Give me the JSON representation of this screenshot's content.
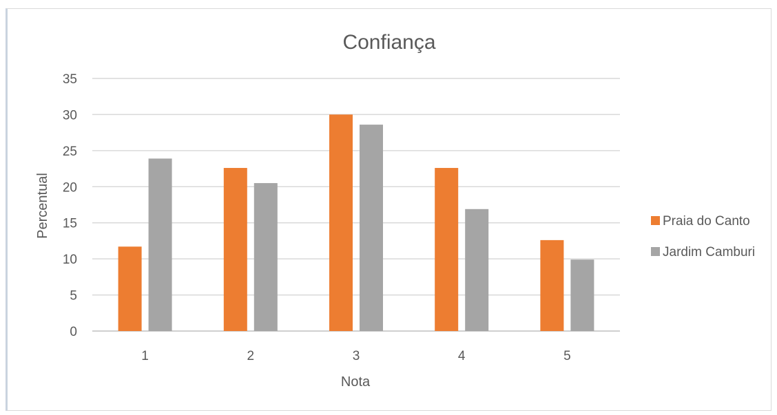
{
  "chart_data": {
    "type": "bar",
    "title": "Confiança",
    "xlabel": "Nota",
    "ylabel": "Percentual",
    "categories": [
      "1",
      "2",
      "3",
      "4",
      "5"
    ],
    "series": [
      {
        "name": "Praia do Canto",
        "color": "#ED7D31",
        "values": [
          11.7,
          22.6,
          30.0,
          22.6,
          12.6
        ]
      },
      {
        "name": "Jardim Camburi",
        "color": "#A5A5A5",
        "values": [
          23.9,
          20.5,
          28.6,
          16.9,
          9.9
        ]
      }
    ],
    "ylim": [
      0,
      35
    ],
    "yticks": [
      0,
      5,
      10,
      15,
      20,
      25,
      30,
      35
    ],
    "grid": true,
    "legend_position": "right"
  }
}
